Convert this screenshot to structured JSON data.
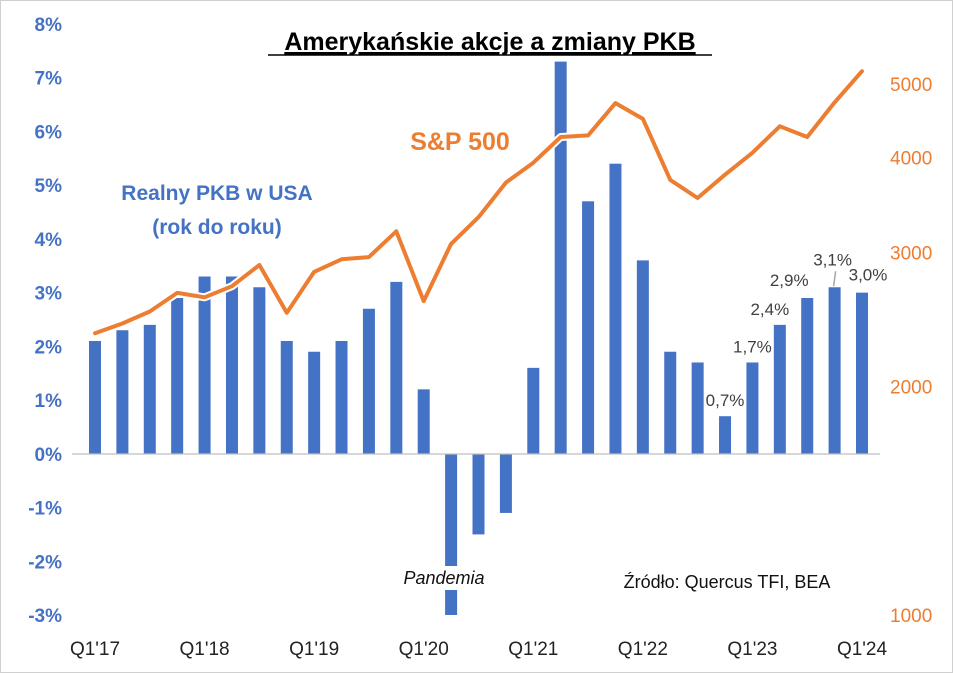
{
  "chart_data": {
    "type": "bar+line",
    "title": "Amerykańskie akcje a zmiany PKB",
    "categories": [
      "Q1'17",
      "Q2'17",
      "Q3'17",
      "Q4'17",
      "Q1'18",
      "Q2'18",
      "Q3'18",
      "Q4'18",
      "Q1'19",
      "Q2'19",
      "Q3'19",
      "Q4'19",
      "Q1'20",
      "Q2'20",
      "Q3'20",
      "Q4'20",
      "Q1'21",
      "Q2'21",
      "Q3'21",
      "Q4'21",
      "Q1'22",
      "Q2'22",
      "Q3'22",
      "Q4'22",
      "Q1'23",
      "Q2'23",
      "Q3'23",
      "Q4'23",
      "Q1'24"
    ],
    "x_tick_labels": [
      "Q1'17",
      "Q1'18",
      "Q1'19",
      "Q1'20",
      "Q1'21",
      "Q1'22",
      "Q1'23",
      "Q1'24"
    ],
    "series": [
      {
        "name": "Realny PKB w USA (rok do roku)",
        "type": "bar",
        "axis": "left",
        "color": "#4472c4",
        "values": [
          2.1,
          2.3,
          2.4,
          2.9,
          3.3,
          3.3,
          3.1,
          2.1,
          1.9,
          2.1,
          2.7,
          3.2,
          1.2,
          -3.0,
          -1.5,
          -1.1,
          1.6,
          7.3,
          4.7,
          5.4,
          3.6,
          1.9,
          1.7,
          0.7,
          1.7,
          2.4,
          2.9,
          3.1,
          3.0
        ],
        "data_labels": {
          "23": "0,7%",
          "24": "1,7%",
          "25": "2,4%",
          "26": "2,9%",
          "27": "3,1%",
          "28": "3,0%"
        }
      },
      {
        "name": "S&P 500",
        "type": "line",
        "axis": "right",
        "color": "#ed7d31",
        "values": [
          2350,
          2420,
          2510,
          2655,
          2620,
          2710,
          2890,
          2500,
          2830,
          2940,
          2960,
          3200,
          2590,
          3080,
          3340,
          3710,
          3940,
          4260,
          4280,
          4720,
          4500,
          3740,
          3540,
          3800,
          4060,
          4400,
          4260,
          4730,
          5200
        ]
      }
    ],
    "y_left": {
      "ylim": [
        -3,
        8
      ],
      "tick_labels": [
        "-3%",
        "-2%",
        "-1%",
        "0%",
        "1%",
        "2%",
        "3%",
        "4%",
        "5%",
        "6%",
        "7%",
        "8%"
      ],
      "color": "#4472c4"
    },
    "y_right": {
      "scale": "log",
      "ylim": [
        1000,
        6000
      ],
      "ticks": [
        1000,
        2000,
        3000,
        4000,
        5000
      ],
      "tick_labels": [
        "1000",
        "2000",
        "3000",
        "4000",
        "5000"
      ],
      "color": "#ed7d31"
    },
    "grid": false,
    "legend": "none",
    "annotations": {
      "sp_label": "S&P 500",
      "gdp_label_line1": "Realny PKB w USA",
      "gdp_label_line2": "(rok do roku)",
      "pandemic": "Pandemia",
      "source": "Źródło: Quercus TFI, BEA"
    }
  }
}
